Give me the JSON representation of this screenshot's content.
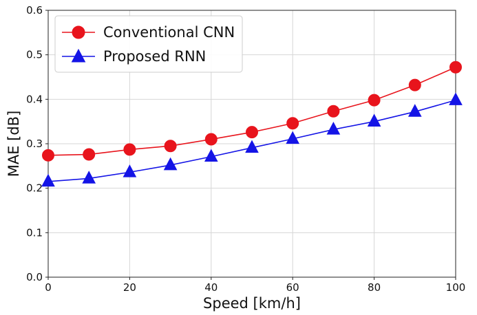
{
  "chart_data": {
    "type": "line",
    "x": [
      0,
      10,
      20,
      30,
      40,
      50,
      60,
      70,
      80,
      90,
      100
    ],
    "series": [
      {
        "name": "Conventional CNN",
        "values": [
          0.274,
          0.276,
          0.287,
          0.295,
          0.31,
          0.326,
          0.346,
          0.373,
          0.398,
          0.432,
          0.472
        ],
        "color": "#e8141c",
        "marker": "circle"
      },
      {
        "name": "Proposed RNN",
        "values": [
          0.215,
          0.222,
          0.236,
          0.252,
          0.271,
          0.291,
          0.311,
          0.332,
          0.35,
          0.372,
          0.398
        ],
        "color": "#1414e6",
        "marker": "triangle"
      }
    ],
    "xlabel": "Speed [km/h]",
    "ylabel": "MAE [dB]",
    "xlim": [
      0,
      100
    ],
    "ylim": [
      0,
      0.6
    ],
    "xticks": [
      "0",
      "20",
      "40",
      "60",
      "80",
      "100"
    ],
    "yticks": [
      "0.0",
      "0.1",
      "0.2",
      "0.3",
      "0.4",
      "0.5",
      "0.6"
    ],
    "grid": true,
    "legend_position": "top-left"
  }
}
